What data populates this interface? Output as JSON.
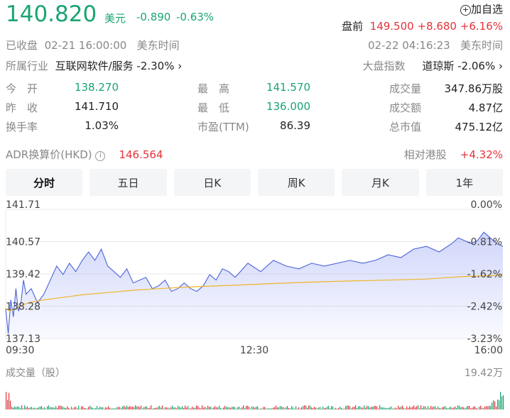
{
  "quote": {
    "price": "140.820",
    "currency": "美元",
    "change": "-0.890",
    "change_pct": "-0.63%",
    "add_watch": "加自选",
    "status": "已收盘",
    "close_time": "02-21 16:00:00",
    "tz1": "美东时间",
    "premarket_label": "盘前",
    "premarket_price": "149.500",
    "premarket_change": "+8.680",
    "premarket_pct": "+6.16%",
    "premarket_time": "02-22 04:16:23",
    "tz2": "美东时间"
  },
  "industry": {
    "label": "所属行业",
    "name": "互联网软件/服务",
    "pct": "-2.30%",
    "index_label": "大盘指数",
    "index_name": "道琼斯",
    "index_pct": "-2.06%"
  },
  "stats": [
    {
      "label": "今　开",
      "value": "138.270",
      "color": "green"
    },
    {
      "label": "最　高",
      "value": "141.570",
      "color": "green"
    },
    {
      "label": "成交量",
      "value": "347.86万股",
      "color": "dark"
    },
    {
      "label": "昨　收",
      "value": "141.710",
      "color": "dark"
    },
    {
      "label": "最　低",
      "value": "136.000",
      "color": "green"
    },
    {
      "label": "成交额",
      "value": "4.87亿",
      "color": "dark"
    },
    {
      "label": "换手率",
      "value": "1.03%",
      "color": "dark"
    },
    {
      "label": "市盈(TTM)",
      "value": "86.39",
      "color": "dark"
    },
    {
      "label": "总市值",
      "value": "475.12亿",
      "color": "dark"
    }
  ],
  "adr": {
    "label": "ADR换算价(HKD)",
    "value": "146.564",
    "rel_label": "相对港股",
    "rel_value": "+4.32%"
  },
  "tabs": [
    "分时",
    "五日",
    "日K",
    "周K",
    "月K",
    "1年"
  ],
  "volume": {
    "label": "成交量（股）",
    "max": "19.42万"
  },
  "colors": {
    "price_line": "#4a64d8",
    "avg_line": "#f0b429",
    "up": "#e3333a",
    "down": "#1aa571"
  },
  "chart_data": {
    "type": "line",
    "x_ticks": [
      "09:30",
      "12:30",
      "16:00"
    ],
    "y_ticks_left": [
      "141.71",
      "140.57",
      "139.42",
      "138.28",
      "137.13"
    ],
    "y_ticks_right": [
      "0.00%",
      "-0.81%",
      "-1.62%",
      "-2.42%",
      "-3.23%"
    ],
    "ylim": [
      137.13,
      141.71
    ],
    "x_range_minutes": [
      0,
      390
    ],
    "series": [
      {
        "x": [
          0,
          2,
          4,
          6,
          8,
          10,
          12,
          14,
          16,
          20,
          25,
          30,
          35,
          40,
          45,
          50,
          55,
          60,
          65,
          70,
          75,
          80,
          85,
          90,
          95,
          100,
          105,
          110,
          115,
          120,
          125,
          130,
          135,
          140,
          145,
          150,
          155,
          160,
          165,
          170,
          175,
          180,
          190,
          200,
          210,
          220,
          230,
          240,
          250,
          260,
          270,
          280,
          290,
          300,
          310,
          320,
          330,
          340,
          350,
          355,
          360,
          365,
          370,
          375,
          380,
          385,
          390
        ],
        "values": [
          138.2,
          137.3,
          138.5,
          137.9,
          138.9,
          138.1,
          138.4,
          139.2,
          138.7,
          138.9,
          138.4,
          138.7,
          139.2,
          139.7,
          139.4,
          139.8,
          139.5,
          139.9,
          140.2,
          139.9,
          140.3,
          139.7,
          139.5,
          139.3,
          139.6,
          139.1,
          139.2,
          139.3,
          138.9,
          139.0,
          139.2,
          138.8,
          138.9,
          139.1,
          138.9,
          138.8,
          139.0,
          139.4,
          139.2,
          139.6,
          139.5,
          139.3,
          139.8,
          139.5,
          139.9,
          139.7,
          139.6,
          139.8,
          139.7,
          139.8,
          139.9,
          139.8,
          139.9,
          140.1,
          140.0,
          140.3,
          140.4,
          140.2,
          140.5,
          140.7,
          140.6,
          140.5,
          140.6,
          140.9,
          140.7,
          140.5,
          140.4
        ]
      },
      {
        "x": [
          0,
          3,
          6,
          10,
          15,
          20,
          30,
          40,
          50,
          60,
          80,
          100,
          120,
          150,
          180,
          210,
          240,
          270,
          300,
          330,
          360,
          390
        ],
        "values": [
          138.2,
          138.1,
          138.15,
          138.25,
          138.35,
          138.42,
          138.5,
          138.56,
          138.62,
          138.68,
          138.76,
          138.84,
          138.9,
          138.97,
          139.02,
          139.08,
          139.13,
          139.17,
          139.2,
          139.24,
          139.33,
          139.38
        ]
      }
    ]
  }
}
